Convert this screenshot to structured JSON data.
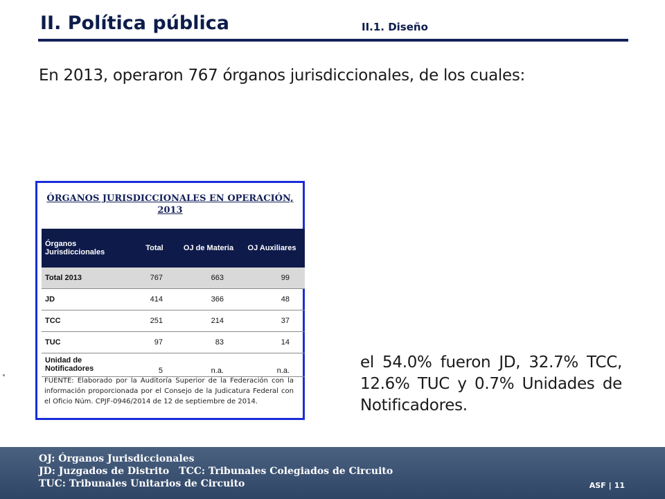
{
  "header": {
    "title": "II. Política pública",
    "section": "II.1. Diseño"
  },
  "lead_text": "En 2013, operaron 767 órganos jurisdiccionales, de los cuales:",
  "table_card": {
    "title": "ÓRGANOS JURISDICCIONALES EN OPERACIÓN, 2013",
    "headers": [
      "Órganos Jurisdiccionales",
      "Total",
      "OJ de Materia",
      "OJ Auxiliares"
    ],
    "rows": [
      [
        "Total 2013",
        "767",
        "663",
        "99"
      ],
      [
        "JD",
        "414",
        "366",
        "48"
      ],
      [
        "TCC",
        "251",
        "214",
        "37"
      ],
      [
        "TUC",
        "97",
        "83",
        "14"
      ],
      [
        "Unidad de Notificadores",
        "5",
        "n.a.",
        "n.a."
      ]
    ],
    "source": "FUENTE: Elaborado por la Auditoría Superior de la Federación con la información proporcionada por el Consejo de la Judicatura Federal con el Oficio Núm. CPJF-0946/2014 de 12 de septiembre de 2014."
  },
  "conclusion": "el 54.0% fueron JD, 32.7% TCC, 12.6% TUC y 0.7% Unidades de Notificadores.",
  "footer": {
    "line1": "OJ: Órganos Jurisdiccionales",
    "line2a": "JD: Juzgados de Distrito",
    "line2b": "TCC: Tribunales Colegiados de Circuito",
    "line3": "TUC: Tribunales Unitarios de Circuito",
    "org": "ASF",
    "page": "11"
  },
  "colors": {
    "header_navy": "#0e1a4a",
    "card_border": "#1a2dd8",
    "footer_blue": "#3b5273"
  }
}
